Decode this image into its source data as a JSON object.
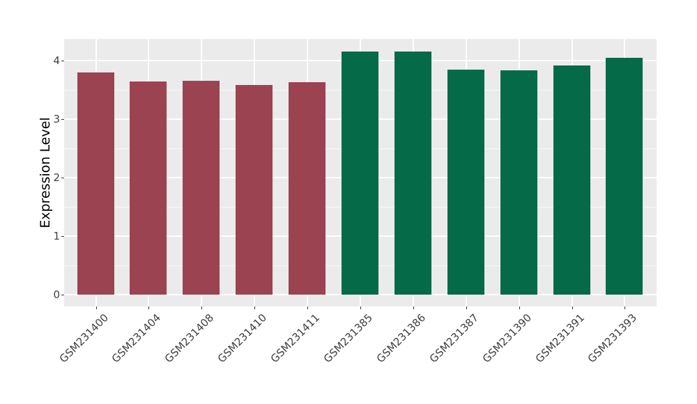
{
  "chart_data": {
    "type": "bar",
    "title": "",
    "xlabel": "",
    "ylabel": "Expression Level",
    "categories": [
      "GSM231400",
      "GSM231404",
      "GSM231408",
      "GSM231410",
      "GSM231411",
      "GSM231385",
      "GSM231386",
      "GSM231387",
      "GSM231390",
      "GSM231391",
      "GSM231393"
    ],
    "values": [
      3.8,
      3.64,
      3.65,
      3.58,
      3.63,
      4.15,
      4.15,
      3.85,
      3.83,
      3.92,
      4.05
    ],
    "bar_groups": [
      "maroon",
      "maroon",
      "maroon",
      "maroon",
      "maroon",
      "green",
      "green",
      "green",
      "green",
      "green",
      "green"
    ],
    "group_colors": {
      "maroon": "#9C4351",
      "green": "#046A48"
    },
    "yticks": [
      0,
      1,
      2,
      3,
      4
    ],
    "yticks_minor": [
      0.5,
      1.5,
      2.5,
      3.5
    ],
    "ylim": [
      -0.21,
      4.37
    ],
    "grid": "on",
    "legend": "none",
    "panel_background": "#EBEBEB",
    "grid_major_color": "#FFFFFF",
    "grid_minor_color": "#FFFFFF",
    "tick_color": "#333333",
    "tick_label_color": "#404040",
    "axis_title_color": "#000000"
  }
}
